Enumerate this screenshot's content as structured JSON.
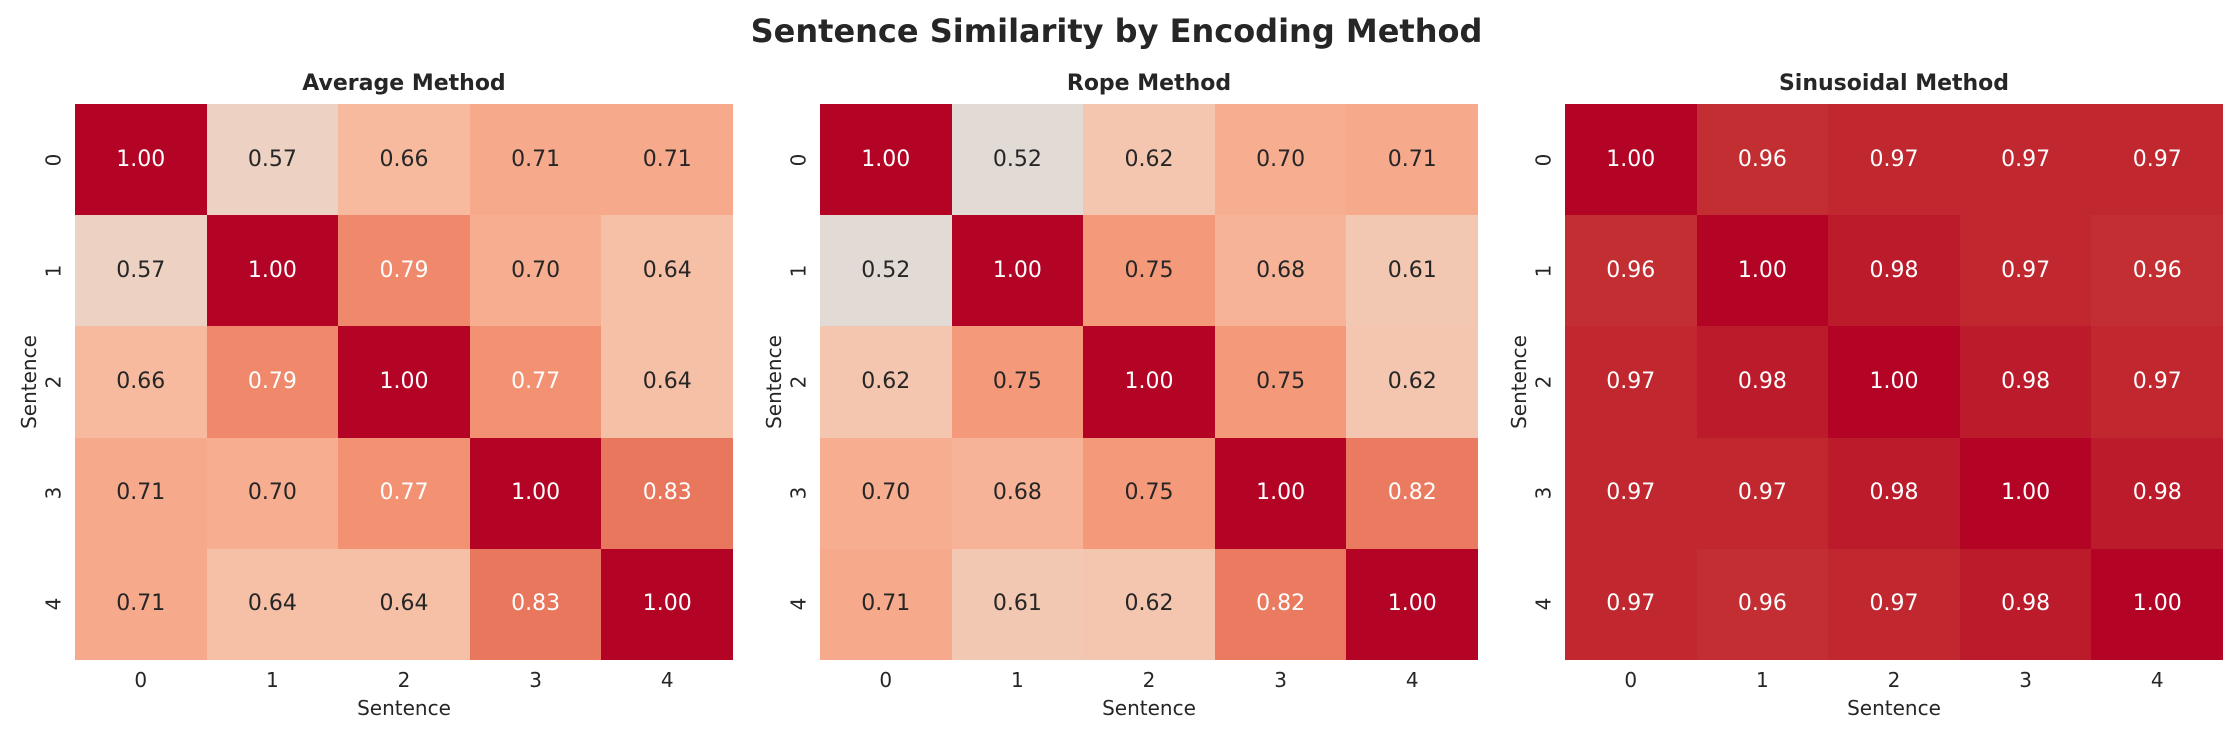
{
  "figure": {
    "title": "Sentence Similarity by Encoding Method",
    "background": "#ffffff",
    "text_color": "#262626"
  },
  "chart_data": [
    {
      "type": "heatmap",
      "title": "Average Method",
      "xlabel": "Sentence",
      "ylabel": "Sentence",
      "xticklabels": [
        "0",
        "1",
        "2",
        "3",
        "4"
      ],
      "yticklabels": [
        "0",
        "1",
        "2",
        "3",
        "4"
      ],
      "vmin": 0,
      "vmax": 1,
      "value_format": "2dp",
      "values": [
        [
          1.0,
          0.57,
          0.66,
          0.71,
          0.71
        ],
        [
          0.57,
          1.0,
          0.79,
          0.7,
          0.64
        ],
        [
          0.66,
          0.79,
          1.0,
          0.77,
          0.64
        ],
        [
          0.71,
          0.7,
          0.77,
          1.0,
          0.83
        ],
        [
          0.71,
          0.64,
          0.64,
          0.83,
          1.0
        ]
      ]
    },
    {
      "type": "heatmap",
      "title": "Rope Method",
      "xlabel": "Sentence",
      "ylabel": "Sentence",
      "xticklabels": [
        "0",
        "1",
        "2",
        "3",
        "4"
      ],
      "yticklabels": [
        "0",
        "1",
        "2",
        "3",
        "4"
      ],
      "vmin": 0,
      "vmax": 1,
      "value_format": "2dp",
      "values": [
        [
          1.0,
          0.52,
          0.62,
          0.7,
          0.71
        ],
        [
          0.52,
          1.0,
          0.75,
          0.68,
          0.61
        ],
        [
          0.62,
          0.75,
          1.0,
          0.75,
          0.62
        ],
        [
          0.7,
          0.68,
          0.75,
          1.0,
          0.82
        ],
        [
          0.71,
          0.61,
          0.62,
          0.82,
          1.0
        ]
      ]
    },
    {
      "type": "heatmap",
      "title": "Sinusoidal Method",
      "xlabel": "Sentence",
      "ylabel": "Sentence",
      "xticklabels": [
        "0",
        "1",
        "2",
        "3",
        "4"
      ],
      "yticklabels": [
        "0",
        "1",
        "2",
        "3",
        "4"
      ],
      "vmin": 0,
      "vmax": 1,
      "value_format": "2dp",
      "values": [
        [
          1.0,
          0.96,
          0.97,
          0.97,
          0.97
        ],
        [
          0.96,
          1.0,
          0.98,
          0.97,
          0.96
        ],
        [
          0.97,
          0.98,
          1.0,
          0.98,
          0.97
        ],
        [
          0.97,
          0.97,
          0.98,
          1.0,
          0.98
        ],
        [
          0.97,
          0.96,
          0.97,
          0.98,
          1.0
        ]
      ]
    }
  ],
  "colormap": {
    "name": "coolwarm",
    "anchors": [
      [
        0.5,
        [
          221,
          221,
          221
        ]
      ],
      [
        0.53125,
        [
          229,
          216,
          209
        ]
      ],
      [
        0.5625,
        [
          236,
          211,
          197
        ]
      ],
      [
        0.59375,
        [
          241,
          204,
          185
        ]
      ],
      [
        0.625,
        [
          245,
          196,
          173
        ]
      ],
      [
        0.65625,
        [
          247,
          187,
          160
        ]
      ],
      [
        0.6875,
        [
          247,
          177,
          148
        ]
      ],
      [
        0.71875,
        [
          247,
          166,
          135
        ]
      ],
      [
        0.75,
        [
          244,
          154,
          123
        ]
      ],
      [
        0.78125,
        [
          241,
          141,
          111
        ]
      ],
      [
        0.8125,
        [
          236,
          127,
          99
        ]
      ],
      [
        0.84375,
        [
          229,
          112,
          88
        ]
      ],
      [
        0.875,
        [
          222,
          96,
          77
        ]
      ],
      [
        0.90625,
        [
          213,
          80,
          66
        ]
      ],
      [
        0.9375,
        [
          203,
          62,
          56
        ]
      ],
      [
        0.96875,
        [
          192,
          40,
          47
        ]
      ],
      [
        1.0,
        [
          180,
          4,
          38
        ]
      ]
    ],
    "annot_dark_text": "#262626",
    "annot_light_text": "#ffffff",
    "luminance_threshold": 0.42
  }
}
